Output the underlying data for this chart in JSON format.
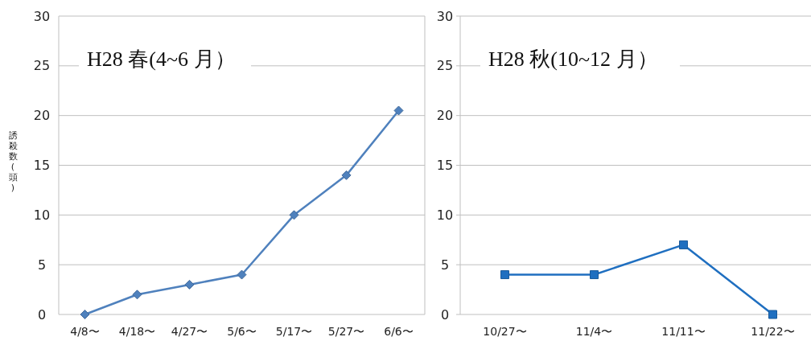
{
  "chart_data": [
    {
      "type": "line",
      "title": "H28 春(4~6 月）",
      "ylabel": "誘殺数(頭)",
      "categories": [
        "4/8〜",
        "4/18〜",
        "4/27〜",
        "5/6〜",
        "5/17〜",
        "5/27〜",
        "6/6〜"
      ],
      "series": [
        {
          "color": "#4f81bd",
          "values": [
            0,
            2,
            3,
            4,
            10,
            14,
            20.5
          ]
        }
      ],
      "ylim": [
        0,
        30
      ],
      "yticks": [
        0,
        5,
        10,
        15,
        20,
        25,
        30
      ],
      "grid": "y",
      "marker": "diamond"
    },
    {
      "type": "line",
      "title": "H28 秋(10~12 月）",
      "categories": [
        "10/27〜",
        "11/4〜",
        "11/11〜",
        "11/22〜"
      ],
      "series": [
        {
          "color": "#1f6fc0",
          "values": [
            4,
            4,
            7,
            0
          ]
        }
      ],
      "ylim": [
        0,
        30
      ],
      "yticks": [
        0,
        5,
        10,
        15,
        20,
        25,
        30
      ],
      "grid": "y",
      "marker": "square"
    }
  ]
}
